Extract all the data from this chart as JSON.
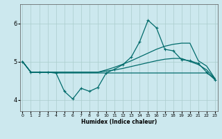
{
  "xlabel": "Humidex (Indice chaleur)",
  "bg_color": "#cce8ee",
  "grid_color": "#aacccc",
  "line_color": "#006b6b",
  "x_ticks": [
    0,
    1,
    2,
    3,
    4,
    5,
    6,
    7,
    8,
    9,
    10,
    11,
    12,
    13,
    14,
    15,
    16,
    17,
    18,
    19,
    20,
    21,
    22,
    23
  ],
  "ylim": [
    3.7,
    6.5
  ],
  "xlim": [
    -0.3,
    23.3
  ],
  "yticks": [
    4,
    5,
    6
  ],
  "series": {
    "flat_x": [
      0,
      1,
      2,
      3,
      4,
      5,
      6,
      7,
      8,
      9,
      10,
      11,
      12,
      13,
      14,
      15,
      16,
      17,
      18,
      19,
      20,
      21,
      22,
      23
    ],
    "flat_y": [
      5.0,
      4.72,
      4.72,
      4.72,
      4.7,
      4.7,
      4.7,
      4.7,
      4.7,
      4.7,
      4.7,
      4.7,
      4.7,
      4.7,
      4.7,
      4.7,
      4.7,
      4.7,
      4.7,
      4.7,
      4.7,
      4.7,
      4.7,
      4.55
    ],
    "spiky_x": [
      0,
      1,
      2,
      3,
      4,
      5,
      6,
      7,
      8,
      9,
      10,
      11,
      12,
      13,
      14,
      15,
      16,
      17,
      18,
      19,
      20,
      21,
      22,
      23
    ],
    "spiky_y": [
      5.0,
      4.72,
      4.72,
      4.72,
      4.7,
      4.22,
      4.02,
      4.3,
      4.22,
      4.32,
      4.7,
      4.8,
      4.92,
      5.12,
      5.52,
      6.08,
      5.88,
      5.32,
      5.28,
      5.05,
      5.02,
      4.95,
      4.72,
      4.52
    ],
    "upper_x": [
      0,
      1,
      2,
      3,
      4,
      5,
      6,
      7,
      8,
      9,
      10,
      11,
      12,
      13,
      14,
      15,
      16,
      17,
      18,
      19,
      20,
      21,
      22,
      23
    ],
    "upper_y": [
      5.0,
      4.72,
      4.72,
      4.72,
      4.72,
      4.72,
      4.72,
      4.72,
      4.72,
      4.72,
      4.78,
      4.85,
      4.93,
      5.02,
      5.12,
      5.22,
      5.32,
      5.4,
      5.45,
      5.48,
      5.48,
      5.02,
      4.88,
      4.55
    ],
    "lower_x": [
      0,
      1,
      2,
      3,
      4,
      5,
      6,
      7,
      8,
      9,
      10,
      11,
      12,
      13,
      14,
      15,
      16,
      17,
      18,
      19,
      20,
      21,
      22,
      23
    ],
    "lower_y": [
      5.0,
      4.72,
      4.72,
      4.72,
      4.72,
      4.72,
      4.72,
      4.72,
      4.72,
      4.72,
      4.75,
      4.78,
      4.82,
      4.87,
      4.92,
      4.97,
      5.02,
      5.06,
      5.08,
      5.08,
      5.0,
      4.92,
      4.78,
      4.55
    ]
  }
}
